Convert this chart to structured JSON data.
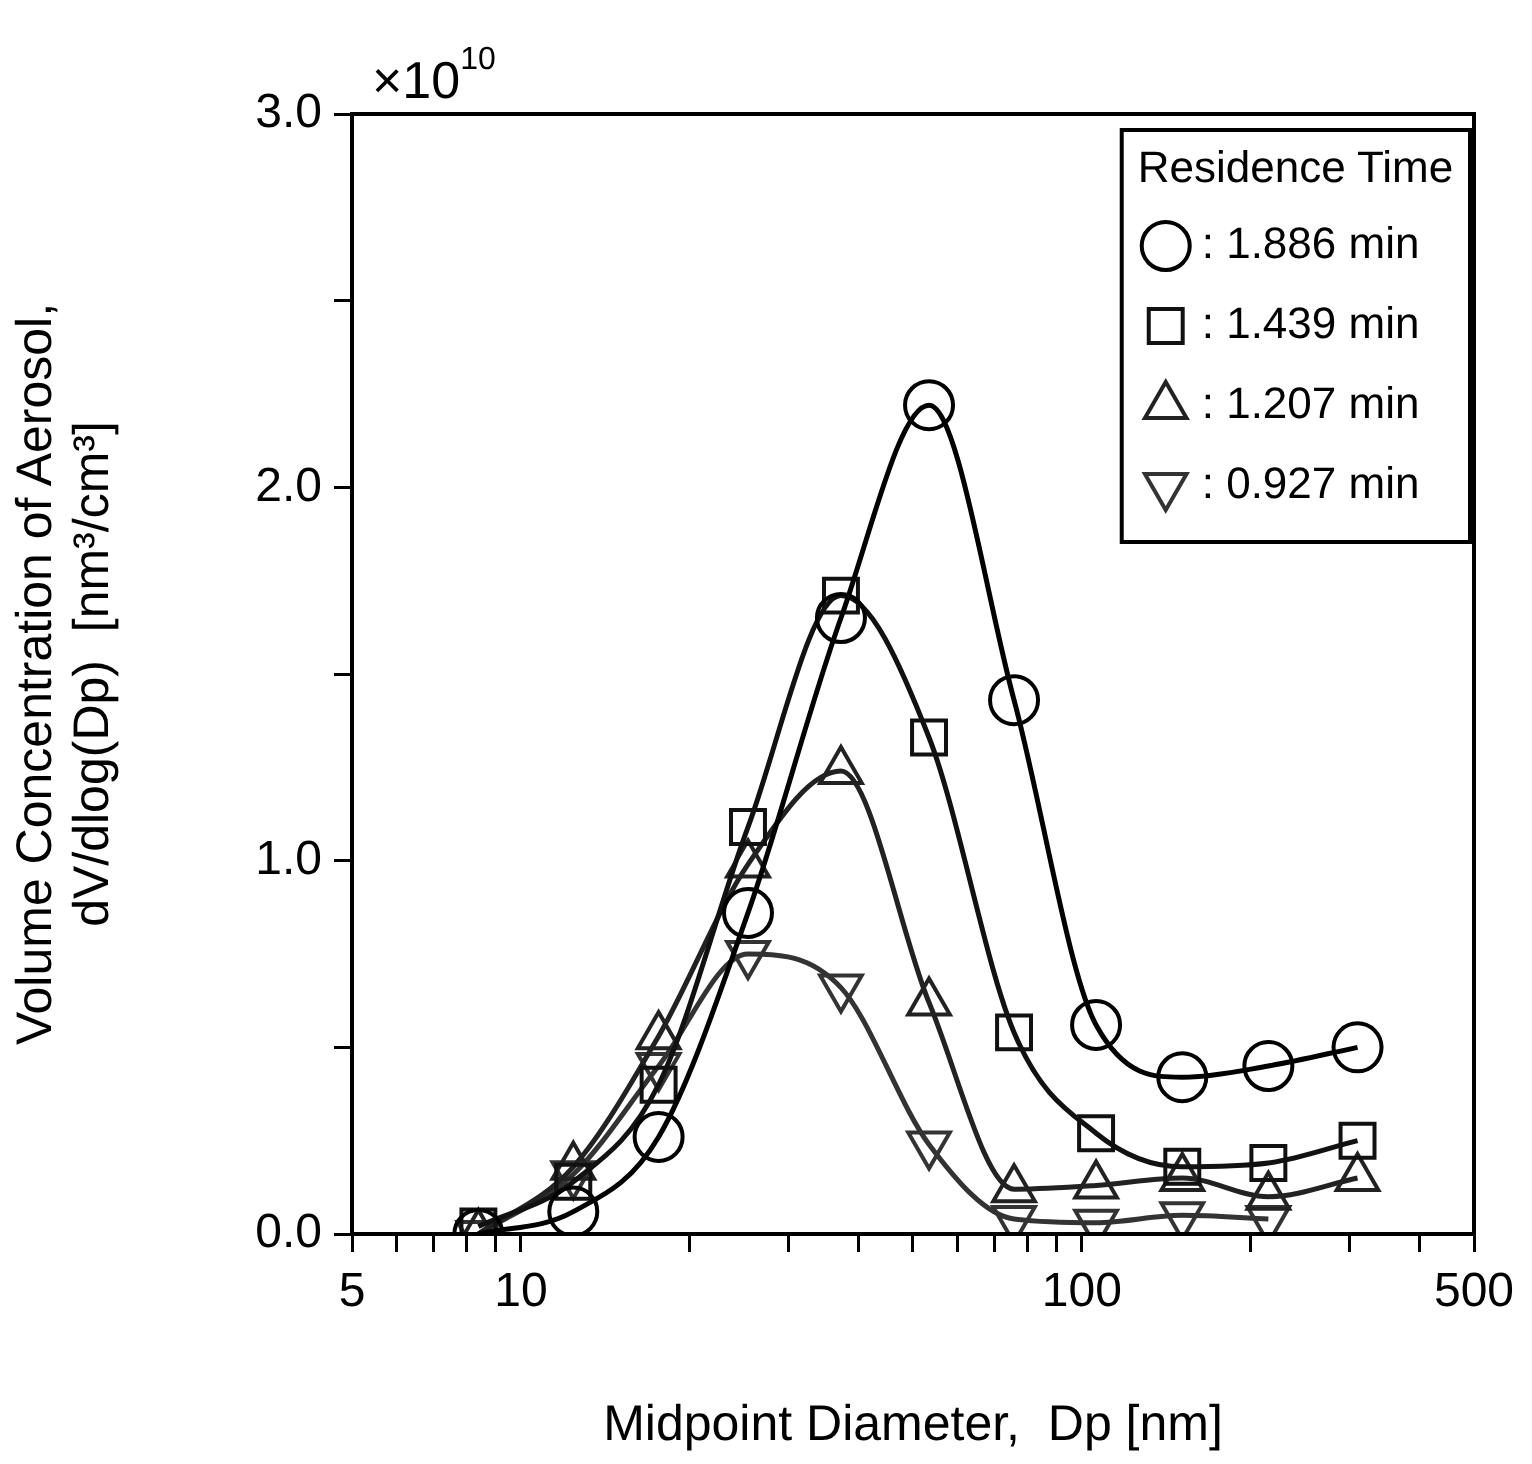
{
  "chart_data": {
    "type": "line",
    "xlabel": "Midpoint Diameter,  Dp [nm]",
    "ylabel": "Volume Concentration of Aerosol,\ndV/dlog(Dp)  [nm³/cm³]",
    "legend_title": "Residence Time",
    "legend": "top right",
    "log": "x",
    "line_style": "solid",
    "x": [
      8.4,
      12.4,
      17.6,
      25.4,
      37.2,
      53.4,
      75.7,
      106,
      151,
      215,
      310
    ],
    "series": [
      {
        "name": ": 1.886 min",
        "color": "#000000",
        "marker": "circle",
        "values": [
          0,
          0.06,
          0.26,
          0.86,
          1.65,
          2.22,
          1.43,
          0.56,
          0.42,
          0.45,
          0.5
        ]
      },
      {
        "name": ": 1.439 min",
        "color": "#111111",
        "marker": "square",
        "values": [
          0.02,
          0.14,
          0.4,
          1.09,
          1.71,
          1.33,
          0.54,
          0.27,
          0.18,
          0.19,
          0.25
        ]
      },
      {
        "name": ": 1.207 min",
        "color": "#222222",
        "marker": "triangle",
        "values": [
          0,
          0.18,
          0.53,
          0.99,
          1.24,
          0.62,
          0.12,
          0.13,
          0.15,
          0.1,
          0.15
        ]
      },
      {
        "name": ": 0.927 min",
        "color": "#333333",
        "marker": "triangle-down",
        "values": [
          0,
          0.16,
          0.45,
          0.75,
          0.66,
          0.24,
          0.04,
          0.03,
          0.05,
          0.04,
          null
        ]
      }
    ],
    "xlim": [
      5,
      500
    ],
    "xticks": [
      5,
      10,
      {
        "value": 20,
        "label": null
      },
      {
        "value": 30,
        "label": null
      },
      {
        "value": 40,
        "label": null
      },
      {
        "value": 50,
        "label": null
      },
      {
        "value": 60,
        "label": null
      },
      {
        "value": 70,
        "label": null
      },
      {
        "value": 80,
        "label": null
      },
      {
        "value": 90,
        "label": null
      },
      {
        "value": 6,
        "label": null
      },
      {
        "value": 7,
        "label": null
      },
      {
        "value": 8,
        "label": null
      },
      {
        "value": 9,
        "label": null
      },
      100,
      {
        "value": 200,
        "label": null
      },
      {
        "value": 300,
        "label": null
      },
      {
        "value": 400,
        "label": null
      },
      500
    ],
    "ylim": [
      0,
      3
    ],
    "yticks": [
      {
        "value": 0,
        "label": "0.0"
      },
      {
        "value": 0.5,
        "label": null
      },
      {
        "value": 1,
        "label": "1.0"
      },
      {
        "value": 1.5,
        "label": null
      },
      {
        "value": 2,
        "label": "2.0"
      },
      {
        "value": 2.5,
        "label": null
      },
      {
        "value": 3,
        "label": "3.0"
      }
    ],
    "annotations": [
      "×10$^{10}$"
    ]
  }
}
